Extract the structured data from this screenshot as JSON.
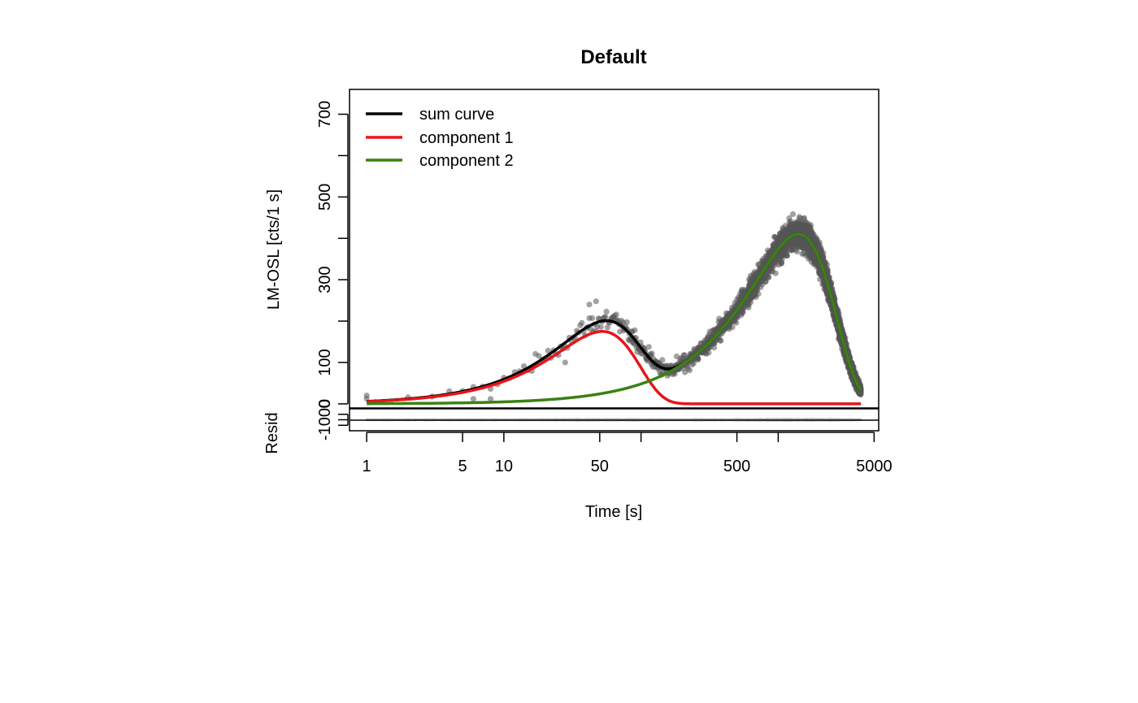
{
  "chart_data": {
    "type": "line",
    "title": "Default",
    "xlabel": "Time [s]",
    "ylabel": "LM-OSL [cts/1 s]",
    "resid_label": "Resid",
    "x_scale": "log",
    "xlim": [
      0.75,
      5400
    ],
    "ylim": [
      -10,
      760
    ],
    "resid_ylim": [
      -2000,
      2000
    ],
    "x_ticks": [
      1,
      5,
      10,
      50,
      100,
      500,
      1000,
      5000
    ],
    "x_tick_labels": [
      "1",
      "5",
      "10",
      "50",
      "",
      "500",
      "",
      "5000"
    ],
    "y_ticks": [
      0,
      100,
      200,
      300,
      400,
      500,
      600,
      700
    ],
    "y_tick_labels": [
      "0",
      "100",
      "",
      "300",
      "",
      "500",
      "",
      "700"
    ],
    "resid_ticks": [
      -1000,
      0,
      1000
    ],
    "resid_tick_labels": [
      "-1000",
      "",
      ""
    ],
    "legend_position": "top-left",
    "colors": {
      "points": "#555555",
      "sum": "#000000",
      "component1": "#e8141a",
      "component2": "#3a8212",
      "resid": "#b3b3b3"
    },
    "components": [
      {
        "name": "component 1",
        "peak_time": 52,
        "peak_value": 175
      },
      {
        "name": "component 2",
        "peak_time": 1400,
        "peak_value": 410
      }
    ],
    "series": [
      {
        "name": "sum curve",
        "x": [
          1,
          2,
          5,
          10,
          20,
          30,
          40,
          52,
          70,
          100,
          130,
          160,
          200,
          300,
          500,
          800,
          1000,
          1400,
          2000,
          3000,
          4000
        ],
        "y": [
          5,
          12,
          30,
          55,
          110,
          155,
          185,
          198,
          180,
          125,
          88,
          78,
          85,
          120,
          200,
          300,
          360,
          410,
          330,
          160,
          70
        ]
      },
      {
        "name": "component 1",
        "x": [
          1,
          2,
          5,
          10,
          20,
          30,
          40,
          52,
          70,
          100,
          130,
          160,
          200,
          300,
          500,
          1000,
          4000
        ],
        "y": [
          5,
          12,
          28,
          52,
          105,
          145,
          170,
          175,
          150,
          80,
          30,
          8,
          2,
          0,
          0,
          0,
          0
        ]
      },
      {
        "name": "component 2",
        "x": [
          1,
          5,
          10,
          50,
          100,
          200,
          300,
          500,
          800,
          1000,
          1400,
          2000,
          3000,
          4000
        ],
        "y": [
          0,
          3,
          6,
          20,
          40,
          80,
          120,
          200,
          300,
          360,
          410,
          330,
          160,
          70
        ]
      }
    ]
  }
}
